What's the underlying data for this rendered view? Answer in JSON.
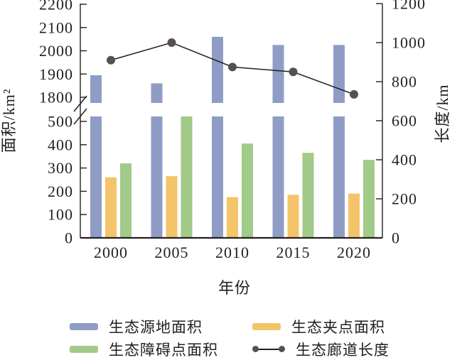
{
  "chart_data": {
    "type": "bar",
    "subtype": "grouped bars with overlaid line, dual y-axis, broken left axis",
    "categories": [
      "2000",
      "2005",
      "2010",
      "2015",
      "2020"
    ],
    "series": [
      {
        "key": "source-area",
        "name": "生态源地面积",
        "kind": "bar",
        "axis": "left",
        "color": "#8f9dc6",
        "values": [
          1895,
          1860,
          2060,
          2025,
          2025
        ]
      },
      {
        "key": "pinch-area",
        "name": "生态夹点面积",
        "kind": "bar",
        "axis": "left",
        "color": "#f3c46a",
        "values": [
          260,
          265,
          175,
          185,
          190
        ]
      },
      {
        "key": "barrier-area",
        "name": "生态障碍点面积",
        "kind": "bar",
        "axis": "left",
        "color": "#a2ca88",
        "values": [
          320,
          505,
          405,
          365,
          335
        ]
      },
      {
        "key": "corridor-length",
        "name": "生态廊道长度",
        "kind": "line",
        "axis": "right",
        "color": "#57504f",
        "line_color": "#231f20",
        "values": [
          910,
          1000,
          875,
          850,
          735
        ]
      }
    ],
    "bar_order": [
      "source-area",
      "pinch-area",
      "barrier-area"
    ],
    "legend_order": [
      "source-area",
      "pinch-area",
      "barrier-area",
      "corridor-length"
    ],
    "x_axis": {
      "label": "年份"
    },
    "left_axis": {
      "label": "面积/km²",
      "broken": true,
      "lower_range": [
        0,
        500
      ],
      "upper_range": [
        1800,
        2200
      ],
      "lower_ticks": [
        0,
        100,
        200,
        300,
        400,
        500
      ],
      "upper_ticks": [
        1800,
        1900,
        2000,
        2100,
        2200
      ]
    },
    "right_axis": {
      "label": "长度/km",
      "range": [
        0,
        1200
      ],
      "ticks": [
        0,
        200,
        400,
        600,
        800,
        1000,
        1200
      ]
    },
    "grid": false,
    "legend_position": "bottom"
  },
  "colors": {
    "axis": "#231f20",
    "background": "#ffffff"
  }
}
